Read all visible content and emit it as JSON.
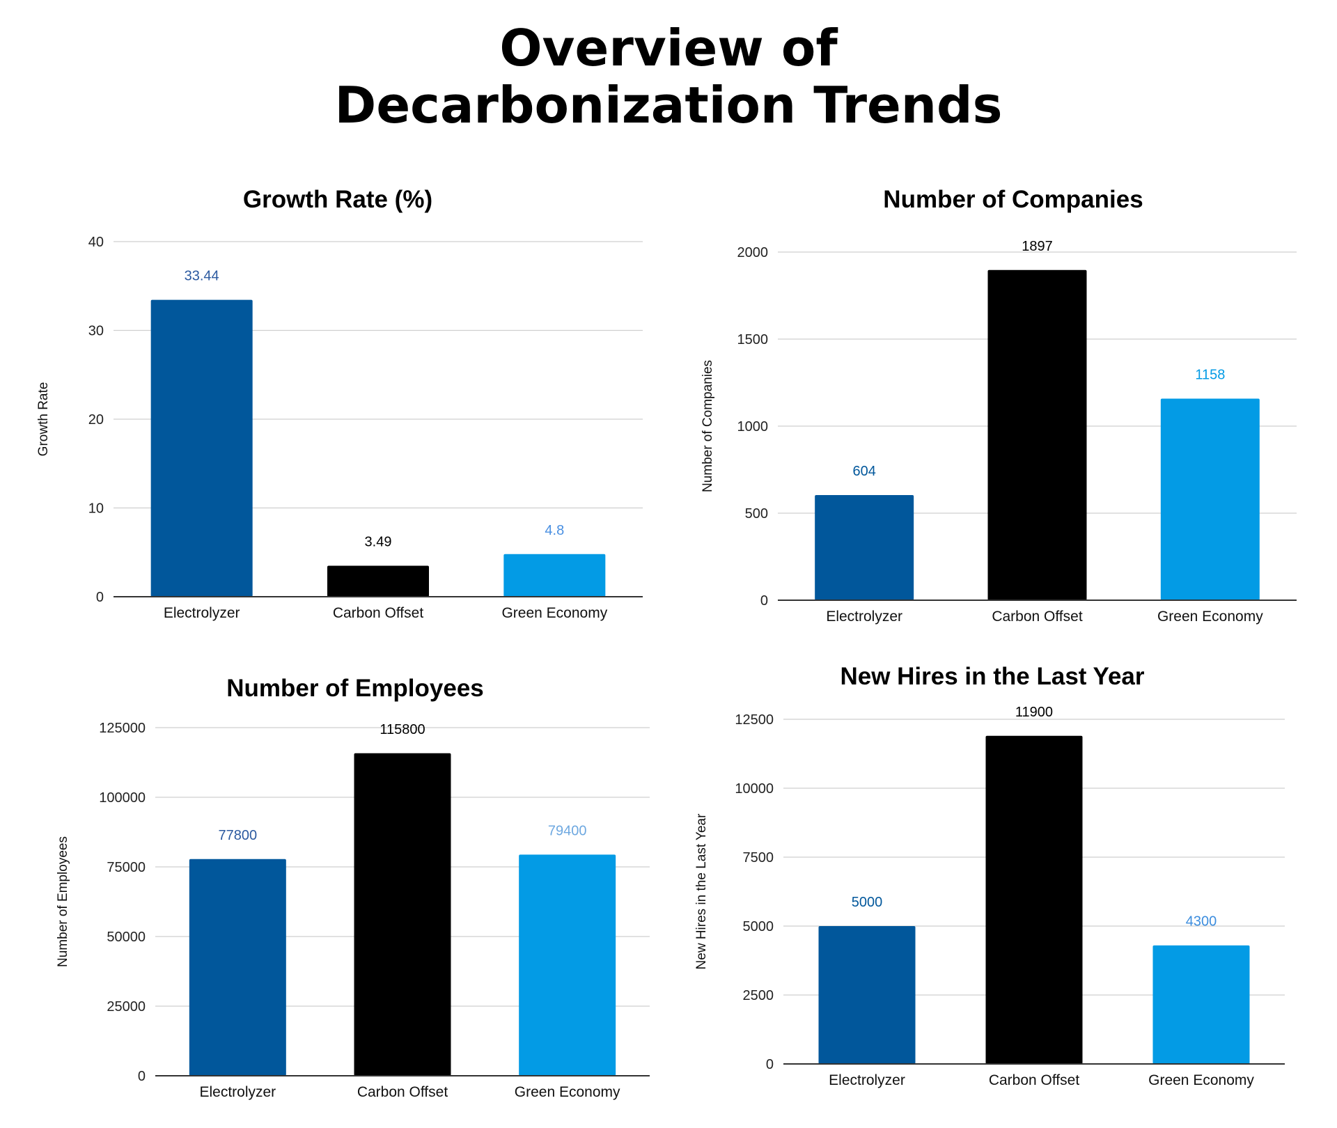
{
  "title_lines": [
    "Overview of",
    "Decarbonization Trends"
  ],
  "colors": {
    "electrolyzer": "#01579b",
    "carbon_offset": "#000000",
    "green_economy": "#039be5"
  },
  "chart_data": [
    {
      "type": "bar",
      "title": "Growth Rate (%)",
      "ylabel": "Growth Rate",
      "categories": [
        "Electrolyzer",
        "Carbon Offset",
        "Green Economy"
      ],
      "values": [
        33.44,
        3.49,
        4.8
      ],
      "data_labels": [
        "33.44",
        "3.49",
        "4.8"
      ],
      "label_colors": [
        "#2c5aa0",
        "#000000",
        "#4a90e2"
      ],
      "ylim": [
        0,
        40
      ],
      "yticks": [
        0,
        10,
        20,
        30,
        40
      ],
      "grid": true
    },
    {
      "type": "bar",
      "title": "Number of Companies",
      "ylabel": "Number of Companies",
      "categories": [
        "Electrolyzer",
        "Carbon Offset",
        "Green Economy"
      ],
      "values": [
        604,
        1897,
        1158
      ],
      "data_labels": [
        "604",
        "1897",
        "1158"
      ],
      "label_colors": [
        "#01579b",
        "#000000",
        "#039be5"
      ],
      "ylim": [
        0,
        2000
      ],
      "yticks": [
        0,
        500,
        1000,
        1500,
        2000
      ],
      "grid": true
    },
    {
      "type": "bar",
      "title": "Number of Employees",
      "ylabel": "Number of Employees",
      "categories": [
        "Electrolyzer",
        "Carbon Offset",
        "Green Economy"
      ],
      "values": [
        77800,
        115800,
        79400
      ],
      "data_labels": [
        "77800",
        "115800",
        "79400"
      ],
      "label_colors": [
        "#2c5aa0",
        "#000000",
        "#6ea8e0"
      ],
      "ylim": [
        0,
        125000
      ],
      "yticks": [
        0,
        25000,
        50000,
        75000,
        100000,
        125000
      ],
      "grid": true
    },
    {
      "type": "bar",
      "title": "New Hires in the Last Year",
      "ylabel": "New Hires in the Last Year",
      "categories": [
        "Electrolyzer",
        "Carbon Offset",
        "Green Economy"
      ],
      "values": [
        5000,
        11900,
        4300
      ],
      "data_labels": [
        "5000",
        "11900",
        "4300"
      ],
      "label_colors": [
        "#01579b",
        "#000000",
        "#3c8dde"
      ],
      "ylim": [
        0,
        12500
      ],
      "yticks": [
        0,
        2500,
        5000,
        7500,
        10000,
        12500
      ],
      "grid": true
    }
  ]
}
